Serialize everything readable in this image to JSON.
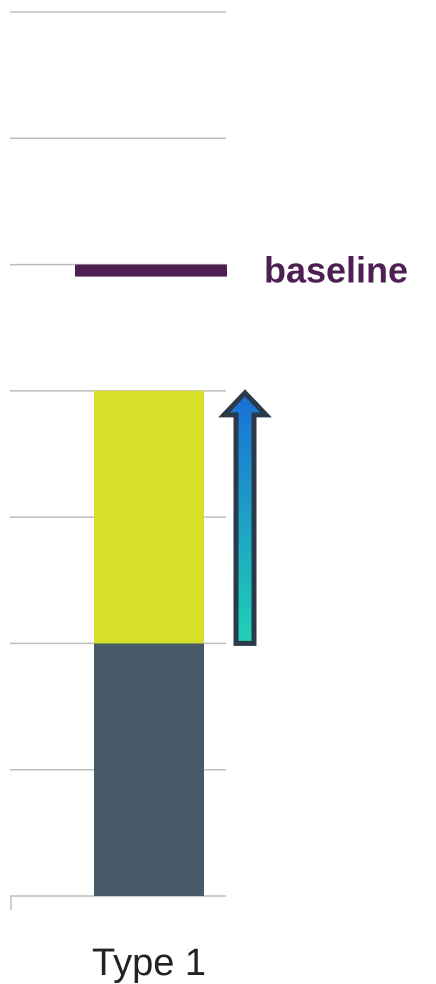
{
  "chart_data": {
    "type": "bar",
    "stacked": true,
    "categories": [
      "Type 1"
    ],
    "series": [
      {
        "values": [
          2
        ],
        "color": "#465a68"
      },
      {
        "values": [
          2
        ],
        "color": "#d8df28"
      }
    ],
    "ylim": [
      0,
      7
    ],
    "gridlines": [
      1,
      2,
      3,
      4,
      5,
      6,
      7
    ],
    "grid": true,
    "reference_line": {
      "label": "baseline",
      "value": 5,
      "color": "#4e1f53"
    },
    "annotation_arrow": {
      "from": 2,
      "to": 4,
      "direction": "up",
      "gradient": [
        "#1fd1b4",
        "#1a6fd6"
      ],
      "outline": "#2a3a4a"
    }
  }
}
